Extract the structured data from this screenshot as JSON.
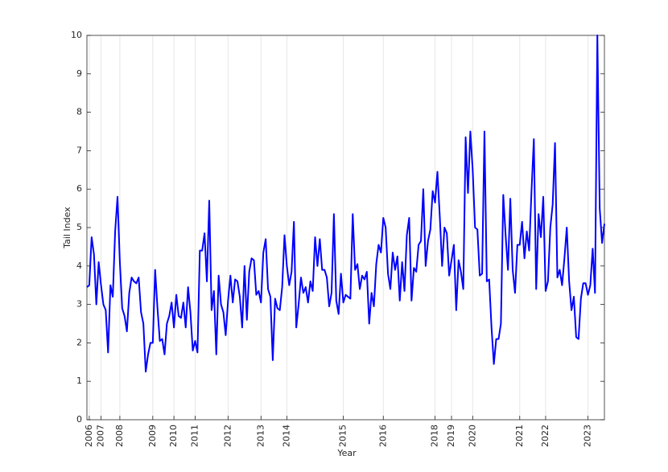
{
  "chart_data": {
    "type": "line",
    "xlabel": "Year",
    "ylabel": "Tail Index",
    "x": [
      1,
      2,
      3,
      4,
      5,
      6,
      7,
      8,
      9,
      10,
      11,
      12,
      13,
      14,
      15,
      16,
      17,
      18,
      19,
      20,
      21,
      22,
      23,
      24,
      25,
      26,
      27,
      28,
      29,
      30,
      31,
      32,
      33,
      34,
      35,
      36,
      37,
      38,
      39,
      40,
      41,
      42,
      43,
      44,
      45,
      46,
      47,
      48,
      49,
      50,
      51,
      52,
      53,
      54,
      55,
      56,
      57,
      58,
      59,
      60,
      61,
      62,
      63,
      64,
      65,
      66,
      67,
      68,
      69,
      70,
      71,
      72,
      73,
      74,
      75,
      76,
      77,
      78,
      79,
      80,
      81,
      82,
      83,
      84,
      85,
      86,
      87,
      88,
      89,
      90,
      91,
      92,
      93,
      94,
      95,
      96,
      97,
      98,
      99,
      100,
      101,
      102,
      103,
      104,
      105,
      106,
      107,
      108,
      109,
      110,
      111,
      112,
      113,
      114,
      115,
      116,
      117,
      118,
      119,
      120,
      121,
      122,
      123,
      124,
      125,
      126,
      127,
      128,
      129,
      130,
      131,
      132,
      133,
      134,
      135,
      136,
      137,
      138,
      139,
      140,
      141,
      142,
      143,
      144,
      145,
      146,
      147,
      148,
      149,
      150,
      151,
      152,
      153,
      154,
      155,
      156,
      157,
      158,
      159,
      160,
      161,
      162,
      163,
      164,
      165,
      166,
      167,
      168,
      169,
      170,
      171,
      172,
      173,
      174,
      175,
      176,
      177,
      178,
      179,
      180,
      181,
      182,
      183,
      184,
      185,
      186,
      187,
      188,
      189,
      190,
      191,
      192,
      193,
      194,
      195,
      196,
      197,
      198,
      199,
      200,
      201,
      202,
      203,
      204,
      205,
      206,
      207,
      208,
      209,
      210,
      211,
      212,
      213,
      214,
      215,
      216,
      217,
      218,
      219,
      220,
      221
    ],
    "series": [
      {
        "name": "Tail Index",
        "color": "#0000ff",
        "values": [
          3.45,
          3.5,
          4.75,
          4.3,
          3.0,
          4.1,
          3.5,
          3.0,
          2.85,
          1.75,
          3.5,
          3.2,
          4.9,
          5.8,
          4.1,
          2.9,
          2.7,
          2.3,
          3.3,
          3.7,
          3.6,
          3.55,
          3.7,
          2.8,
          2.5,
          1.25,
          1.7,
          2.0,
          2.0,
          3.9,
          2.9,
          2.05,
          2.1,
          1.7,
          2.5,
          2.7,
          3.05,
          2.4,
          3.25,
          2.7,
          2.65,
          3.05,
          2.4,
          3.45,
          2.8,
          1.8,
          2.05,
          1.75,
          4.4,
          4.4,
          4.85,
          3.6,
          5.7,
          2.85,
          3.35,
          1.7,
          3.75,
          3.0,
          2.8,
          2.2,
          3.1,
          3.75,
          3.05,
          3.65,
          3.6,
          3.2,
          2.4,
          4.0,
          2.6,
          3.85,
          4.2,
          4.15,
          3.25,
          3.35,
          3.05,
          4.35,
          4.7,
          3.4,
          3.2,
          1.55,
          3.15,
          2.9,
          2.85,
          3.45,
          4.8,
          4.0,
          3.5,
          3.85,
          5.15,
          2.4,
          3.0,
          3.7,
          3.3,
          3.45,
          3.05,
          3.6,
          3.35,
          4.75,
          4.0,
          4.7,
          3.9,
          3.9,
          3.7,
          2.95,
          3.3,
          5.35,
          3.1,
          2.75,
          3.8,
          3.05,
          3.25,
          3.2,
          3.15,
          5.35,
          3.9,
          4.05,
          3.4,
          3.75,
          3.65,
          3.85,
          2.5,
          3.3,
          2.95,
          4.05,
          4.55,
          4.35,
          5.25,
          5.0,
          3.8,
          3.4,
          4.35,
          3.9,
          4.25,
          3.1,
          4.1,
          3.35,
          4.8,
          5.25,
          3.1,
          3.95,
          3.85,
          4.55,
          4.65,
          6.0,
          4.0,
          4.65,
          4.95,
          5.95,
          5.65,
          6.45,
          5.3,
          4.0,
          5.0,
          4.85,
          3.75,
          4.15,
          4.55,
          2.85,
          4.15,
          3.85,
          3.4,
          7.35,
          5.9,
          7.5,
          6.5,
          5.0,
          4.95,
          3.75,
          3.8,
          7.5,
          3.6,
          3.65,
          2.4,
          1.45,
          2.1,
          2.1,
          2.5,
          5.85,
          4.8,
          3.9,
          5.75,
          3.9,
          3.3,
          4.55,
          4.55,
          5.15,
          4.2,
          4.9,
          4.4,
          5.95,
          7.3,
          3.4,
          5.35,
          4.75,
          5.8,
          3.35,
          3.6,
          5.0,
          5.6,
          7.2,
          3.7,
          3.9,
          3.5,
          4.2,
          5.0,
          3.6,
          2.85,
          3.2,
          2.15,
          2.1,
          3.15,
          3.55,
          3.55,
          3.25,
          3.5,
          4.45,
          3.3,
          10,
          5.5,
          4.6,
          5.1
        ]
      }
    ],
    "xlim": [
      1,
      221
    ],
    "xticks": [
      {
        "value": 2,
        "label": "2006"
      },
      {
        "value": 7,
        "label": "2007"
      },
      {
        "value": 15,
        "label": "2008"
      },
      {
        "value": 29,
        "label": "2009"
      },
      {
        "value": 38,
        "label": "2010"
      },
      {
        "value": 47,
        "label": "2011"
      },
      {
        "value": 61,
        "label": "2012"
      },
      {
        "value": 75,
        "label": "2013"
      },
      {
        "value": 86,
        "label": "2014"
      },
      {
        "value": 110,
        "label": "2015"
      },
      {
        "value": 127,
        "label": "2016"
      },
      {
        "value": 149,
        "label": "2018"
      },
      {
        "value": 156,
        "label": "2019"
      },
      {
        "value": 165,
        "label": "2020"
      },
      {
        "value": 185,
        "label": "2021"
      },
      {
        "value": 196,
        "label": "2022"
      },
      {
        "value": 214,
        "label": "2023"
      }
    ],
    "ylim": [
      0,
      10
    ],
    "yticks": [
      0,
      1,
      2,
      3,
      4,
      5,
      6,
      7,
      8,
      9,
      10
    ],
    "xgrid": true
  }
}
